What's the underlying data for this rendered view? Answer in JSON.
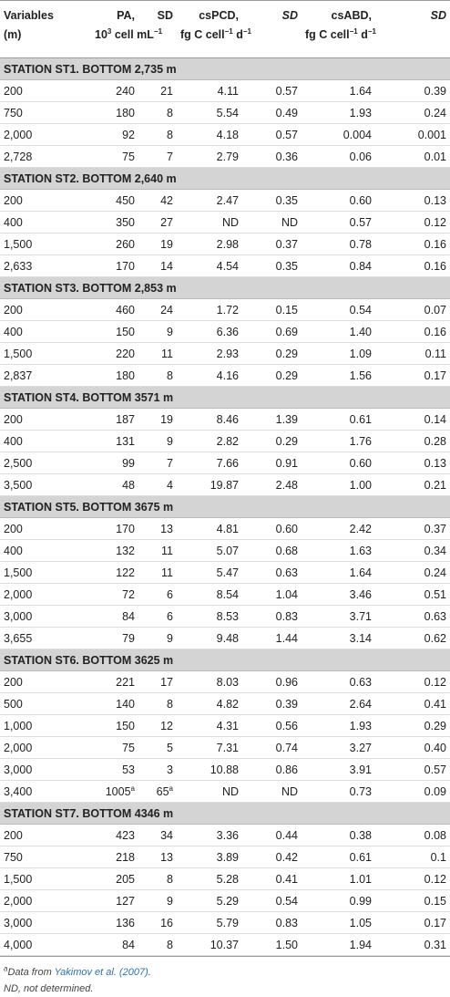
{
  "header": [
    {
      "lines": [
        [
          "Variables"
        ],
        [
          "(m)"
        ]
      ]
    },
    {
      "lines": [
        [
          "PA,"
        ],
        [
          "10",
          {
            "sup": "3"
          },
          " cell mL",
          {
            "sup": "−1"
          }
        ]
      ]
    },
    {
      "lines": [
        [
          "SD"
        ]
      ]
    },
    {
      "lines": [
        [
          "csPCD,"
        ],
        [
          "fg C cell",
          {
            "sup": "−1"
          },
          " d",
          {
            "sup": "−1"
          }
        ]
      ]
    },
    {
      "lines": [
        [
          "SD"
        ]
      ]
    },
    {
      "lines": [
        [
          "csABD,"
        ],
        [
          "fg C cell",
          {
            "sup": "−1"
          },
          " d",
          {
            "sup": "−1"
          }
        ]
      ]
    },
    {
      "lines": [
        [
          "SD"
        ]
      ]
    }
  ],
  "sections": [
    {
      "title": "STATION ST1. BOTTOM 2,735 m",
      "rows": [
        [
          "200",
          "240",
          "21",
          "4.11",
          "0.57",
          "1.64",
          "0.39"
        ],
        [
          "750",
          "180",
          "8",
          "5.54",
          "0.49",
          "1.93",
          "0.24"
        ],
        [
          "2,000",
          "92",
          "8",
          "4.18",
          "0.57",
          "0.004",
          "0.001"
        ],
        [
          "2,728",
          "75",
          "7",
          "2.79",
          "0.36",
          "0.06",
          "0.01"
        ]
      ]
    },
    {
      "title": "STATION ST2. BOTTOM 2,640 m",
      "rows": [
        [
          "200",
          "450",
          "42",
          "2.47",
          "0.35",
          "0.60",
          "0.13"
        ],
        [
          "400",
          "350",
          "27",
          "ND",
          "ND",
          "0.57",
          "0.12"
        ],
        [
          "1,500",
          "260",
          "19",
          "2.98",
          "0.37",
          "0.78",
          "0.16"
        ],
        [
          "2,633",
          "170",
          "14",
          "4.54",
          "0.35",
          "0.84",
          "0.16"
        ]
      ]
    },
    {
      "title": "STATION ST3. BOTTOM 2,853 m",
      "rows": [
        [
          "200",
          "460",
          "24",
          "1.72",
          "0.15",
          "0.54",
          "0.07"
        ],
        [
          "400",
          "150",
          "9",
          "6.36",
          "0.69",
          "1.40",
          "0.16"
        ],
        [
          "1,500",
          "220",
          "11",
          "2.93",
          "0.29",
          "1.09",
          "0.11"
        ],
        [
          "2,837",
          "180",
          "8",
          "4.16",
          "0.29",
          "1.56",
          "0.17"
        ]
      ]
    },
    {
      "title": "STATION ST4. BOTTOM 3571 m",
      "rows": [
        [
          "200",
          "187",
          "19",
          "8.46",
          "1.39",
          "0.61",
          "0.14"
        ],
        [
          "400",
          "131",
          "9",
          "2.82",
          "0.29",
          "1.76",
          "0.28"
        ],
        [
          "2,500",
          "99",
          "7",
          "7.66",
          "0.91",
          "0.60",
          "0.13"
        ],
        [
          "3,500",
          "48",
          "4",
          "19.87",
          "2.48",
          "1.00",
          "0.21"
        ]
      ]
    },
    {
      "title": "STATION ST5. BOTTOM 3675 m",
      "rows": [
        [
          "200",
          "170",
          "13",
          "4.81",
          "0.60",
          "2.42",
          "0.37"
        ],
        [
          "400",
          "132",
          "11",
          "5.07",
          "0.68",
          "1.63",
          "0.34"
        ],
        [
          "1,500",
          "122",
          "11",
          "5.47",
          "0.63",
          "1.64",
          "0.24"
        ],
        [
          "2,000",
          "72",
          "6",
          "8.54",
          "1.04",
          "3.46",
          "0.51"
        ],
        [
          "3,000",
          "84",
          "6",
          "8.53",
          "0.83",
          "3.71",
          "0.63"
        ],
        [
          "3,655",
          "79",
          "9",
          "9.48",
          "1.44",
          "3.14",
          "0.62"
        ]
      ]
    },
    {
      "title": "STATION ST6. BOTTOM 3625 m",
      "rows": [
        [
          "200",
          "221",
          "17",
          "8.03",
          "0.96",
          "0.63",
          "0.12"
        ],
        [
          "500",
          "140",
          "8",
          "4.82",
          "0.39",
          "2.64",
          "0.41"
        ],
        [
          "1,000",
          "150",
          "12",
          "4.31",
          "0.56",
          "1.93",
          "0.29"
        ],
        [
          "2,000",
          "75",
          "5",
          "7.31",
          "0.74",
          "3.27",
          "0.40"
        ],
        [
          "3,000",
          "53",
          "3",
          "10.88",
          "0.86",
          "3.91",
          "0.57"
        ],
        [
          "3,400",
          {
            "text": "1005",
            "sup": "a"
          },
          {
            "text": "65",
            "sup": "a"
          },
          "ND",
          "ND",
          "0.73",
          "0.09"
        ]
      ]
    },
    {
      "title": "STATION ST7. BOTTOM 4346 m",
      "rows": [
        [
          "200",
          "423",
          "34",
          "3.36",
          "0.44",
          "0.38",
          "0.08"
        ],
        [
          "750",
          "218",
          "13",
          "3.89",
          "0.42",
          "0.61",
          "0.1"
        ],
        [
          "1,500",
          "205",
          "8",
          "5.28",
          "0.41",
          "1.01",
          "0.12"
        ],
        [
          "2,000",
          "127",
          "9",
          "5.29",
          "0.54",
          "0.99",
          "0.15"
        ],
        [
          "3,000",
          "136",
          "16",
          "5.79",
          "0.83",
          "1.05",
          "0.17"
        ],
        [
          "4,000",
          "84",
          "8",
          "10.37",
          "1.50",
          "1.94",
          "0.31"
        ]
      ]
    }
  ],
  "footnotes": [
    [
      {
        "sup": "a"
      },
      "Data from ",
      {
        "link": "Yakimov et al. (2007)"
      },
      "."
    ],
    [
      "ND, not determined."
    ]
  ]
}
